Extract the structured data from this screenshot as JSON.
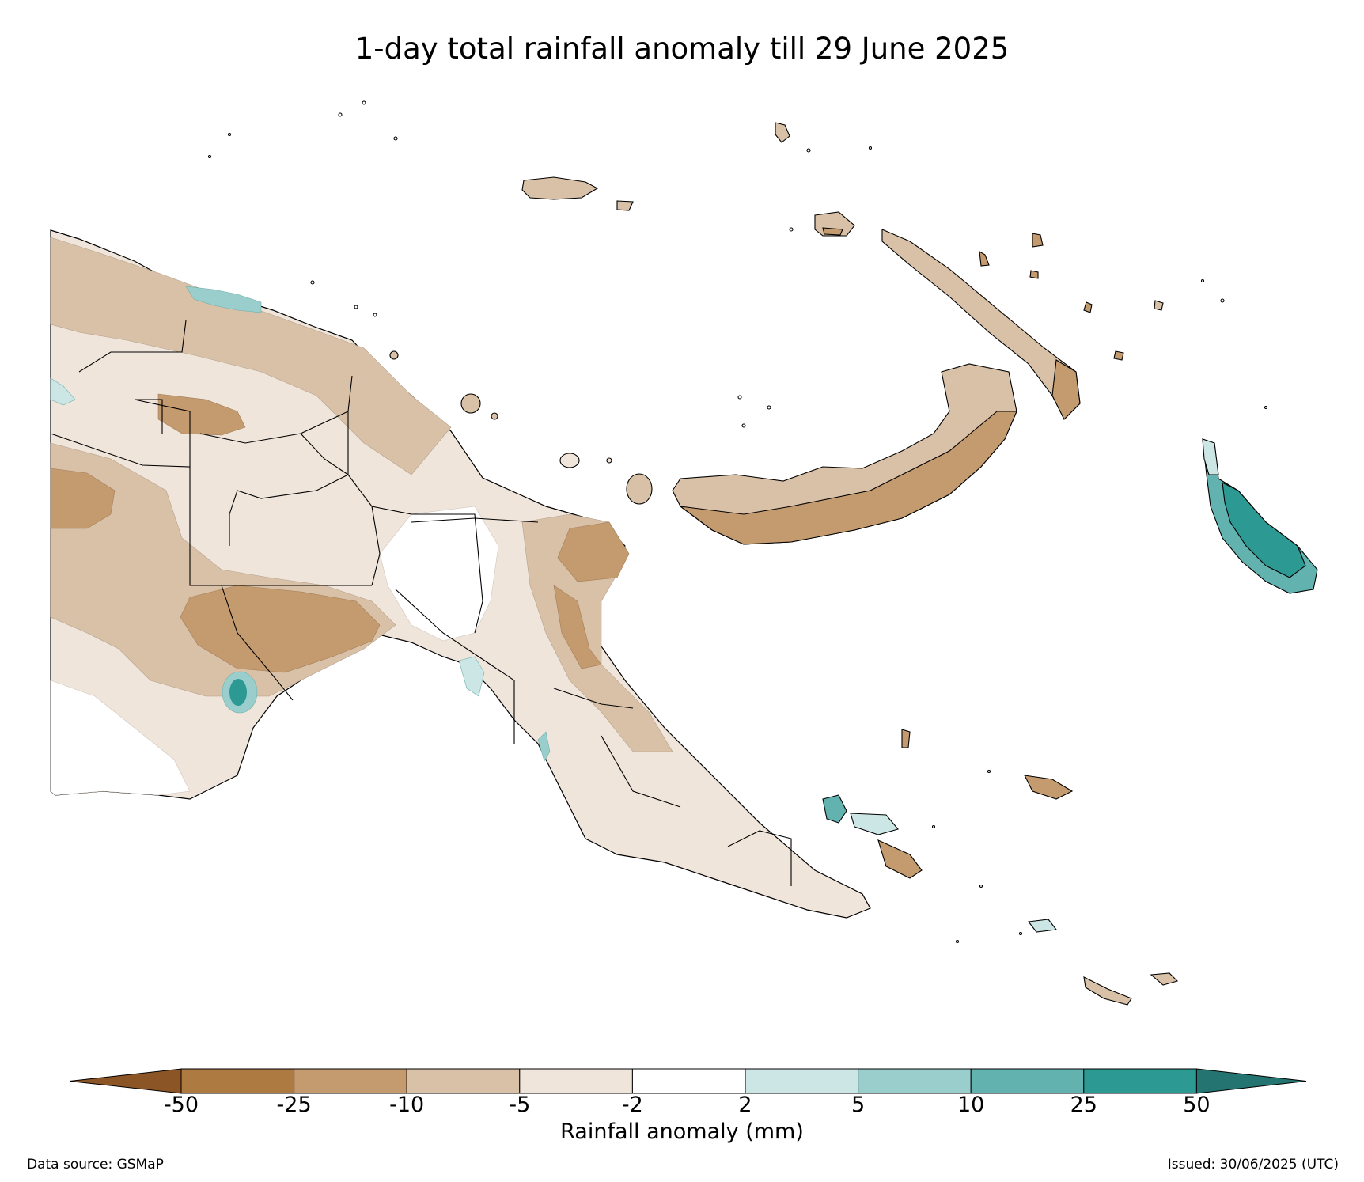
{
  "title": "1-day total rainfall anomaly till 29 June 2025",
  "colorbar": {
    "label": "Rainfall anomaly (mm)",
    "ticks": [
      "-50",
      "-25",
      "-10",
      "-5",
      "-2",
      "2",
      "5",
      "10",
      "25",
      "50"
    ],
    "bins": [
      {
        "range": "< -50",
        "color": "#8b5525"
      },
      {
        "range": "-50 to -25",
        "color": "#ad7a42"
      },
      {
        "range": "-25 to -10",
        "color": "#c49a6f"
      },
      {
        "range": "-10 to -5",
        "color": "#d9c1a7"
      },
      {
        "range": "-5 to -2",
        "color": "#f0e5db"
      },
      {
        "range": "-2 to 2",
        "color": "#ffffff"
      },
      {
        "range": "2 to 5",
        "color": "#cce6e5"
      },
      {
        "range": "5 to 10",
        "color": "#9acecc"
      },
      {
        "range": "10 to 25",
        "color": "#62b3b0"
      },
      {
        "range": "25 to 50",
        "color": "#2d9993"
      },
      {
        "range": "> 50",
        "color": "#247471"
      }
    ]
  },
  "footer": {
    "source": "Data source: GSMaP",
    "issued": "Issued: 30/06/2025 (UTC)"
  }
}
